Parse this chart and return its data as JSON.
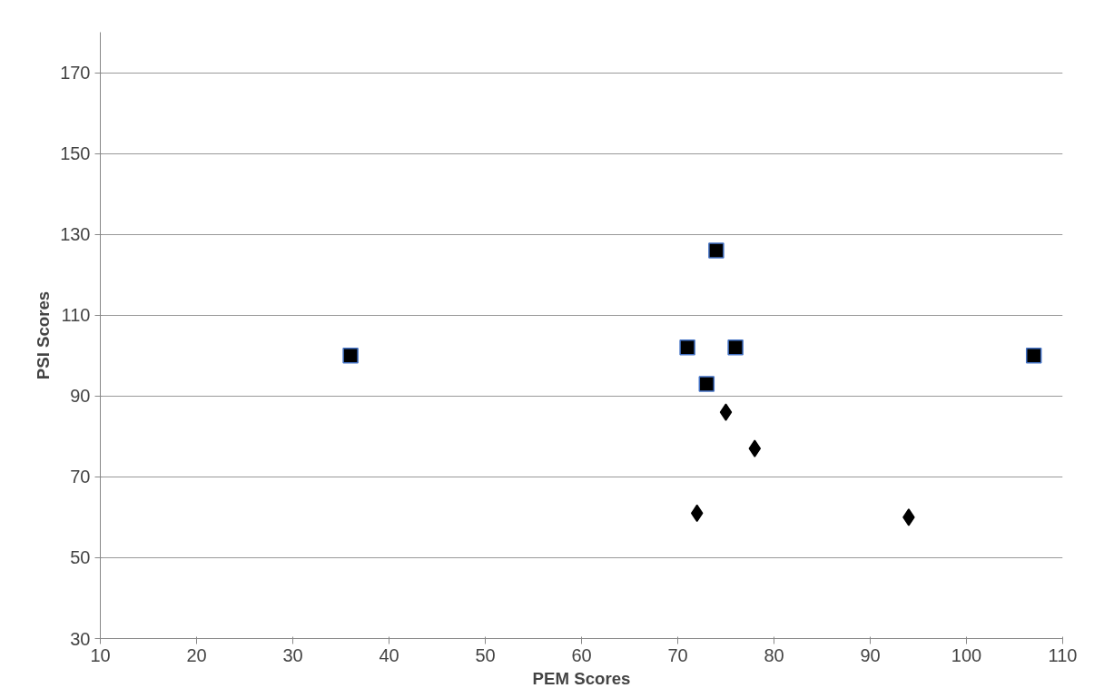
{
  "chart_data": {
    "type": "scatter",
    "xlabel": "PEM Scores",
    "ylabel": "PSI Scores",
    "xlim": [
      10,
      110
    ],
    "xticks": [
      10,
      20,
      30,
      40,
      50,
      60,
      70,
      80,
      90,
      100,
      110
    ],
    "ylim": [
      30,
      180
    ],
    "yticks": [
      30,
      50,
      70,
      90,
      110,
      130,
      150,
      170
    ],
    "grid": "y",
    "series": [
      {
        "color": "#000000",
        "marker": "square",
        "x": [
          36,
          71,
          73,
          74,
          76,
          107
        ],
        "values": [
          100,
          102,
          93,
          126,
          102,
          100
        ]
      },
      {
        "color": "#000000",
        "marker": "diamond",
        "x": [
          72,
          75,
          78,
          94
        ],
        "values": [
          61,
          86,
          77,
          60
        ]
      }
    ]
  }
}
